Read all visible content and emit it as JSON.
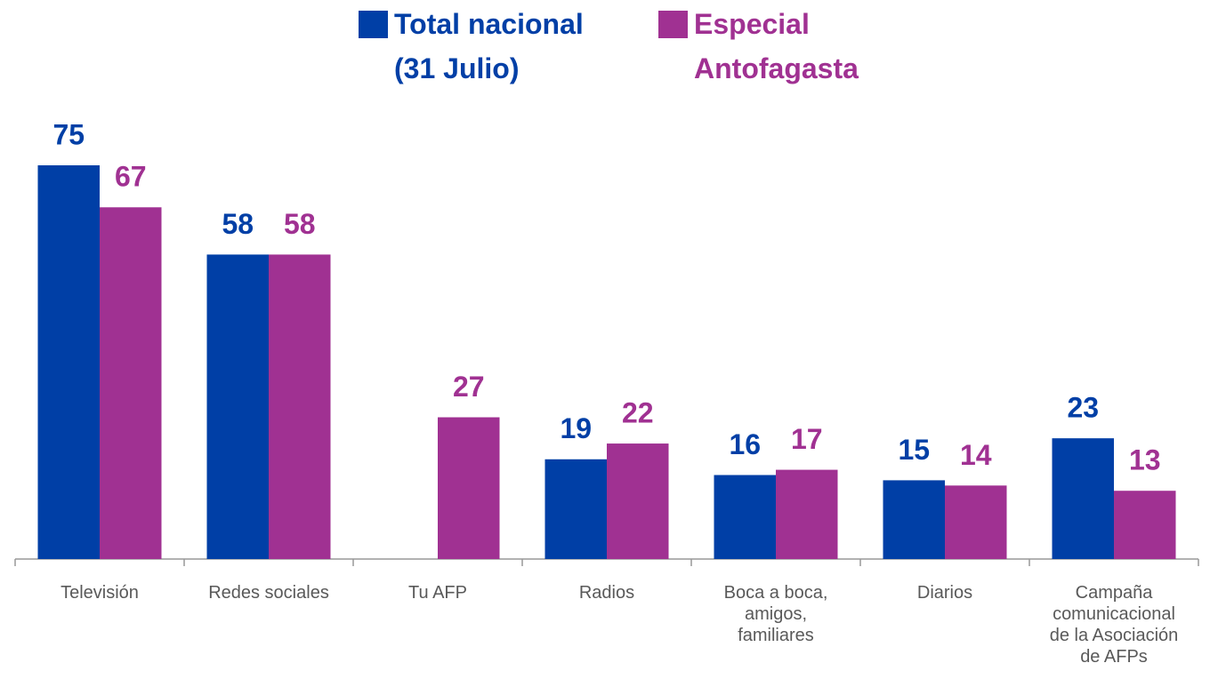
{
  "chart_data": {
    "type": "bar",
    "categories": [
      "Televisión",
      "Redes sociales",
      "Tu AFP",
      "Radios",
      "Boca a boca, amigos, familiares",
      "Diarios",
      "Campaña comunicacional de la Asociación de AFPs"
    ],
    "series": [
      {
        "name": "Total nacional (31 Julio)",
        "color": "#003fa6",
        "values": [
          75,
          58,
          null,
          19,
          16,
          15,
          23
        ]
      },
      {
        "name": "Especial Antofagasta",
        "color": "#a03192",
        "values": [
          67,
          58,
          27,
          22,
          17,
          14,
          13
        ]
      }
    ],
    "ylim": [
      0,
      75
    ]
  }
}
